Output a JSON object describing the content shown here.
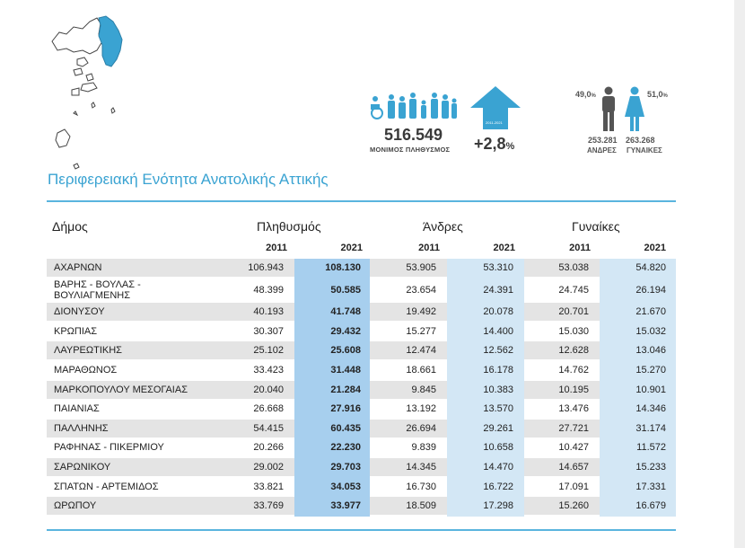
{
  "region_title": "Περιφερειακή Ενότητα Ανατολικής Αττικής",
  "summary": {
    "population_value": "516.549",
    "population_label": "ΜΟΝΙΜΟΣ ΠΛΗΘΥΣΜΟΣ",
    "growth_value": "+2,8",
    "growth_unit": "%",
    "growth_years": "2011-2021",
    "men_pct": "49,0",
    "women_pct": "51,0",
    "pct_unit": "%",
    "men_count": "253.281",
    "women_count": "263.268",
    "men_label": "ΑΝΔΡΕΣ",
    "women_label": "ΓΥΝΑΙΚΕΣ"
  },
  "colors": {
    "accent": "#3aa3d2",
    "highlight_dark": "#a7cfee",
    "highlight_light": "#d3e7f5",
    "row_grey": "#e4e4e4"
  },
  "table": {
    "col_municipality": "Δήμος",
    "col_population": "Πληθυσμός",
    "col_men": "Άνδρες",
    "col_women": "Γυναίκες",
    "year_a": "2011",
    "year_b": "2021",
    "rows": [
      {
        "name": "ΑΧΑΡΝΩΝ",
        "p2011": "106.943",
        "p2021": "108.130",
        "m2011": "53.905",
        "m2021": "53.310",
        "w2011": "53.038",
        "w2021": "54.820"
      },
      {
        "name": "ΒΑΡΗΣ - ΒΟΥΛΑΣ - ΒΟΥΛΙΑΓΜΕΝΗΣ",
        "p2011": "48.399",
        "p2021": "50.585",
        "m2011": "23.654",
        "m2021": "24.391",
        "w2011": "24.745",
        "w2021": "26.194"
      },
      {
        "name": "ΔΙΟΝΥΣΟΥ",
        "p2011": "40.193",
        "p2021": "41.748",
        "m2011": "19.492",
        "m2021": "20.078",
        "w2011": "20.701",
        "w2021": "21.670"
      },
      {
        "name": "ΚΡΩΠΙΑΣ",
        "p2011": "30.307",
        "p2021": "29.432",
        "m2011": "15.277",
        "m2021": "14.400",
        "w2011": "15.030",
        "w2021": "15.032"
      },
      {
        "name": "ΛΑΥΡΕΩΤΙΚΗΣ",
        "p2011": "25.102",
        "p2021": "25.608",
        "m2011": "12.474",
        "m2021": "12.562",
        "w2011": "12.628",
        "w2021": "13.046"
      },
      {
        "name": "ΜΑΡΑΘΩΝΟΣ",
        "p2011": "33.423",
        "p2021": "31.448",
        "m2011": "18.661",
        "m2021": "16.178",
        "w2011": "14.762",
        "w2021": "15.270"
      },
      {
        "name": "ΜΑΡΚΟΠΟΥΛΟΥ ΜΕΣΟΓΑΙΑΣ",
        "p2011": "20.040",
        "p2021": "21.284",
        "m2011": "9.845",
        "m2021": "10.383",
        "w2011": "10.195",
        "w2021": "10.901"
      },
      {
        "name": "ΠΑΙΑΝΙΑΣ",
        "p2011": "26.668",
        "p2021": "27.916",
        "m2011": "13.192",
        "m2021": "13.570",
        "w2011": "13.476",
        "w2021": "14.346"
      },
      {
        "name": "ΠΑΛΛΗΝΗΣ",
        "p2011": "54.415",
        "p2021": "60.435",
        "m2011": "26.694",
        "m2021": "29.261",
        "w2011": "27.721",
        "w2021": "31.174"
      },
      {
        "name": "ΡΑΦΗΝΑΣ - ΠΙΚΕΡΜΙΟΥ",
        "p2011": "20.266",
        "p2021": "22.230",
        "m2011": "9.839",
        "m2021": "10.658",
        "w2011": "10.427",
        "w2021": "11.572"
      },
      {
        "name": "ΣΑΡΩΝΙΚΟΥ",
        "p2011": "29.002",
        "p2021": "29.703",
        "m2011": "14.345",
        "m2021": "14.470",
        "w2011": "14.657",
        "w2021": "15.233"
      },
      {
        "name": "ΣΠΑΤΩΝ - ΑΡΤΕΜΙΔΟΣ",
        "p2011": "33.821",
        "p2021": "34.053",
        "m2011": "16.730",
        "m2021": "16.722",
        "w2011": "17.091",
        "w2021": "17.331"
      },
      {
        "name": "ΩΡΩΠΟΥ",
        "p2011": "33.769",
        "p2021": "33.977",
        "m2011": "18.509",
        "m2021": "17.298",
        "w2011": "15.260",
        "w2021": "16.679"
      }
    ]
  }
}
